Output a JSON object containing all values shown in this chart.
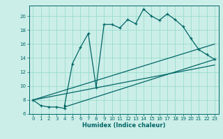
{
  "xlabel": "Humidex (Indice chaleur)",
  "bg_color": "#cceee8",
  "grid_color": "#99ddcc",
  "line_color": "#006666",
  "xlim": [
    -0.5,
    23.5
  ],
  "ylim": [
    6,
    21.5
  ],
  "xticks": [
    0,
    1,
    2,
    3,
    4,
    5,
    6,
    7,
    8,
    9,
    10,
    11,
    12,
    13,
    14,
    15,
    16,
    17,
    18,
    19,
    20,
    21,
    22,
    23
  ],
  "yticks": [
    6,
    8,
    10,
    12,
    14,
    16,
    18,
    20
  ],
  "main_x": [
    0,
    1,
    2,
    3,
    4,
    4,
    5,
    6,
    7,
    8,
    9,
    10,
    11,
    12,
    13,
    14,
    15,
    16,
    17,
    18,
    19,
    20,
    21,
    22,
    23
  ],
  "main_y": [
    8.0,
    7.2,
    7.0,
    7.0,
    6.8,
    7.2,
    13.2,
    15.5,
    17.5,
    9.8,
    18.8,
    18.8,
    18.3,
    19.5,
    18.9,
    21.0,
    20.0,
    19.4,
    20.3,
    19.5,
    18.5,
    16.8,
    15.2,
    14.5,
    13.8
  ],
  "line2_x": [
    0,
    23
  ],
  "line2_y": [
    8.0,
    13.0
  ],
  "line3_x": [
    0,
    23
  ],
  "line3_y": [
    8.0,
    16.0
  ],
  "line4_x": [
    4,
    23
  ],
  "line4_y": [
    7.0,
    13.8
  ]
}
